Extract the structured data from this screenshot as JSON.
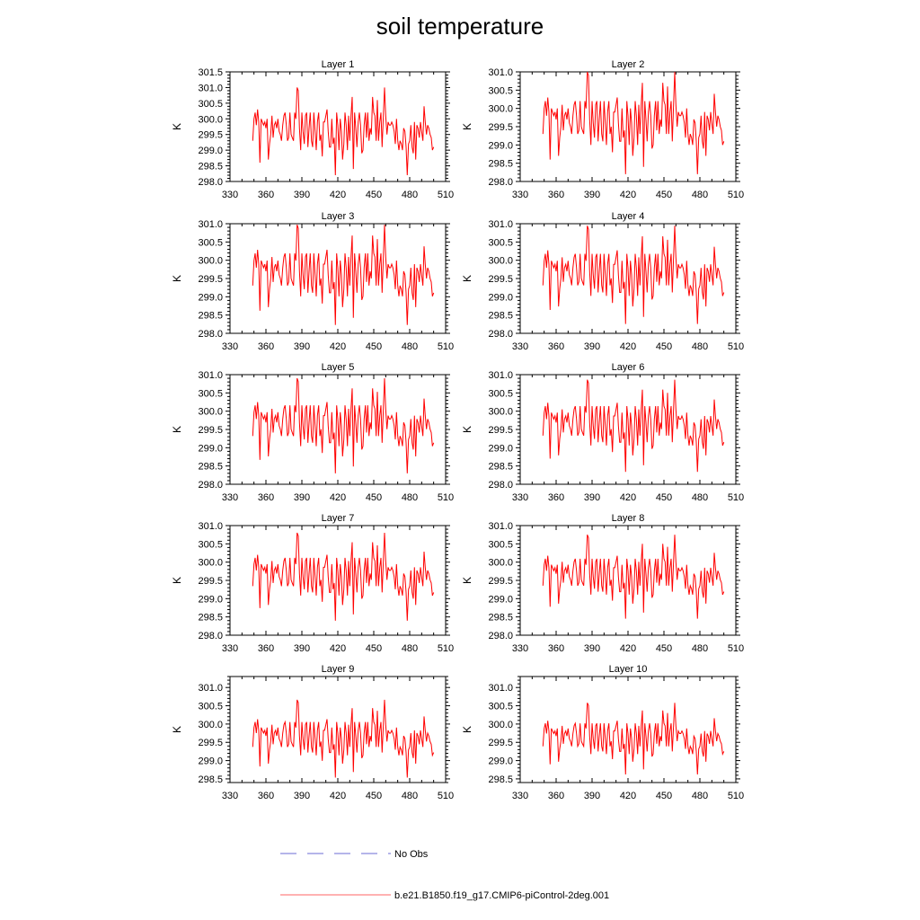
{
  "figure": {
    "title": "soil temperature"
  },
  "legend": {
    "entries": [
      {
        "label": "No Obs",
        "style": "dashed",
        "color": "#6b6bd6"
      },
      {
        "label": "b.e21.B1850.f19_g17.CMIP6-piControl-2deg.001",
        "style": "solid",
        "color": "#ff0000"
      }
    ]
  },
  "chart_data": [
    {
      "type": "line",
      "title": "Layer 1",
      "ylabel": "K",
      "xlim": [
        330,
        510
      ],
      "ylim": [
        298.0,
        301.5
      ],
      "xticks": [
        330,
        360,
        390,
        420,
        450,
        480,
        510
      ],
      "yticks": [
        298.0,
        298.5,
        299.0,
        299.5,
        300.0,
        300.5,
        301.0,
        301.5
      ],
      "tick_decimals": 1,
      "base": 299.6,
      "amp": 1.0,
      "color": "#ff0000"
    },
    {
      "type": "line",
      "title": "Layer 2",
      "ylabel": "K",
      "xlim": [
        330,
        510
      ],
      "ylim": [
        298.0,
        301.0
      ],
      "xticks": [
        330,
        360,
        390,
        420,
        450,
        480,
        510
      ],
      "yticks": [
        298.0,
        298.5,
        299.0,
        299.5,
        300.0,
        300.5,
        301.0
      ],
      "tick_decimals": 1,
      "base": 299.6,
      "amp": 1.0,
      "color": "#ff0000"
    },
    {
      "type": "line",
      "title": "Layer 3",
      "ylabel": "K",
      "xlim": [
        330,
        510
      ],
      "ylim": [
        298.0,
        301.0
      ],
      "xticks": [
        330,
        360,
        390,
        420,
        450,
        480,
        510
      ],
      "yticks": [
        298.0,
        298.5,
        299.0,
        299.5,
        300.0,
        300.5,
        301.0
      ],
      "tick_decimals": 1,
      "base": 299.6,
      "amp": 0.98,
      "color": "#ff0000"
    },
    {
      "type": "line",
      "title": "Layer 4",
      "ylabel": "K",
      "xlim": [
        330,
        510
      ],
      "ylim": [
        298.0,
        301.0
      ],
      "xticks": [
        330,
        360,
        390,
        420,
        450,
        480,
        510
      ],
      "yticks": [
        298.0,
        298.5,
        299.0,
        299.5,
        300.0,
        300.5,
        301.0
      ],
      "tick_decimals": 1,
      "base": 299.6,
      "amp": 0.96,
      "color": "#ff0000"
    },
    {
      "type": "line",
      "title": "Layer 5",
      "ylabel": "K",
      "xlim": [
        330,
        510
      ],
      "ylim": [
        298.0,
        301.0
      ],
      "xticks": [
        330,
        360,
        390,
        420,
        450,
        480,
        510
      ],
      "yticks": [
        298.0,
        298.5,
        299.0,
        299.5,
        300.0,
        300.5,
        301.0
      ],
      "tick_decimals": 1,
      "base": 299.6,
      "amp": 0.93,
      "color": "#ff0000"
    },
    {
      "type": "line",
      "title": "Layer 6",
      "ylabel": "K",
      "xlim": [
        330,
        510
      ],
      "ylim": [
        298.0,
        301.0
      ],
      "xticks": [
        330,
        360,
        390,
        420,
        450,
        480,
        510
      ],
      "yticks": [
        298.0,
        298.5,
        299.0,
        299.5,
        300.0,
        300.5,
        301.0
      ],
      "tick_decimals": 1,
      "base": 299.6,
      "amp": 0.9,
      "color": "#ff0000"
    },
    {
      "type": "line",
      "title": "Layer 7",
      "ylabel": "K",
      "xlim": [
        330,
        510
      ],
      "ylim": [
        298.0,
        301.0
      ],
      "xticks": [
        330,
        360,
        390,
        420,
        450,
        480,
        510
      ],
      "yticks": [
        298.0,
        298.5,
        299.0,
        299.5,
        300.0,
        300.5,
        301.0
      ],
      "tick_decimals": 1,
      "base": 299.6,
      "amp": 0.86,
      "color": "#ff0000"
    },
    {
      "type": "line",
      "title": "Layer 8",
      "ylabel": "K",
      "xlim": [
        330,
        510
      ],
      "ylim": [
        298.0,
        301.0
      ],
      "xticks": [
        330,
        360,
        390,
        420,
        450,
        480,
        510
      ],
      "yticks": [
        298.0,
        298.5,
        299.0,
        299.5,
        300.0,
        300.5,
        301.0
      ],
      "tick_decimals": 1,
      "base": 299.6,
      "amp": 0.82,
      "color": "#ff0000"
    },
    {
      "type": "line",
      "title": "Layer 9",
      "ylabel": "K",
      "xlim": [
        330,
        510
      ],
      "ylim": [
        298.4,
        301.3
      ],
      "xticks": [
        330,
        360,
        390,
        420,
        450,
        480,
        510
      ],
      "yticks": [
        298.5,
        299.0,
        299.5,
        300.0,
        300.5,
        301.0
      ],
      "tick_decimals": 1,
      "base": 299.6,
      "amp": 0.76,
      "color": "#ff0000"
    },
    {
      "type": "line",
      "title": "Layer 10",
      "ylabel": "K",
      "xlim": [
        330,
        510
      ],
      "ylim": [
        298.4,
        301.3
      ],
      "xticks": [
        330,
        360,
        390,
        420,
        450,
        480,
        510
      ],
      "yticks": [
        298.5,
        299.0,
        299.5,
        300.0,
        300.5,
        301.0
      ],
      "tick_decimals": 1,
      "base": 299.6,
      "amp": 0.7,
      "color": "#ff0000"
    }
  ],
  "series_pattern": {
    "x_start": 349,
    "x_end": 500,
    "x_step": 1,
    "anomalies": [
      -0.3,
      0.4,
      0.6,
      0.2,
      0.7,
      0.3,
      -1.0,
      0.4,
      0.3,
      0.2,
      0.3,
      0.1,
      0.4,
      -0.9,
      -0.4,
      -0.1,
      0.5,
      -0.2,
      0.2,
      0.3,
      0.1,
      0.4,
      0.0,
      -0.1,
      -0.3,
      0.2,
      0.5,
      0.6,
      0.2,
      -0.3,
      -0.2,
      0.6,
      -0.1,
      -0.2,
      -0.3,
      0.6,
      0.4,
      1.4,
      1.3,
      0.1,
      -0.6,
      0.6,
      0.0,
      -0.4,
      0.5,
      0.6,
      -0.5,
      0.1,
      0.6,
      -0.3,
      -0.5,
      0.6,
      0.0,
      -0.6,
      0.3,
      0.6,
      -0.3,
      -0.1,
      -0.8,
      0.3,
      0.3,
      0.5,
      0.7,
      0.0,
      -0.5,
      -0.5,
      0.4,
      -0.4,
      -0.2,
      -1.4,
      0.6,
      0.2,
      -0.6,
      0.4,
      0.0,
      -0.9,
      -0.4,
      0.6,
      0.2,
      -0.6,
      0.5,
      -0.3,
      0.5,
      1.1,
      -1.2,
      0.6,
      0.1,
      -0.5,
      0.3,
      0.6,
      0.2,
      -0.7,
      -0.6,
      0.2,
      0.6,
      -0.2,
      0.6,
      -0.3,
      0.1,
      -0.1,
      1.1,
      0.6,
      0.5,
      -0.3,
      1.0,
      -0.3,
      0.3,
      0.6,
      -0.5,
      0.5,
      1.4,
      0.5,
      -0.1,
      0.3,
      0.2,
      0.2,
      0.3,
      0.2,
      0.0,
      -0.4,
      0.4,
      -0.3,
      -0.6,
      -0.3,
      -0.4,
      -0.6,
      0.1,
      0.0,
      -0.5,
      -1.4,
      -0.4,
      -0.3,
      0.2,
      -0.5,
      -0.7,
      0.3,
      -0.9,
      0.2,
      0.1,
      -0.2,
      0.3,
      0.0,
      -0.3,
      0.8,
      0.3,
      -0.1,
      0.2,
      0.1,
      -0.1,
      -0.2,
      -0.6,
      -0.5
    ]
  }
}
